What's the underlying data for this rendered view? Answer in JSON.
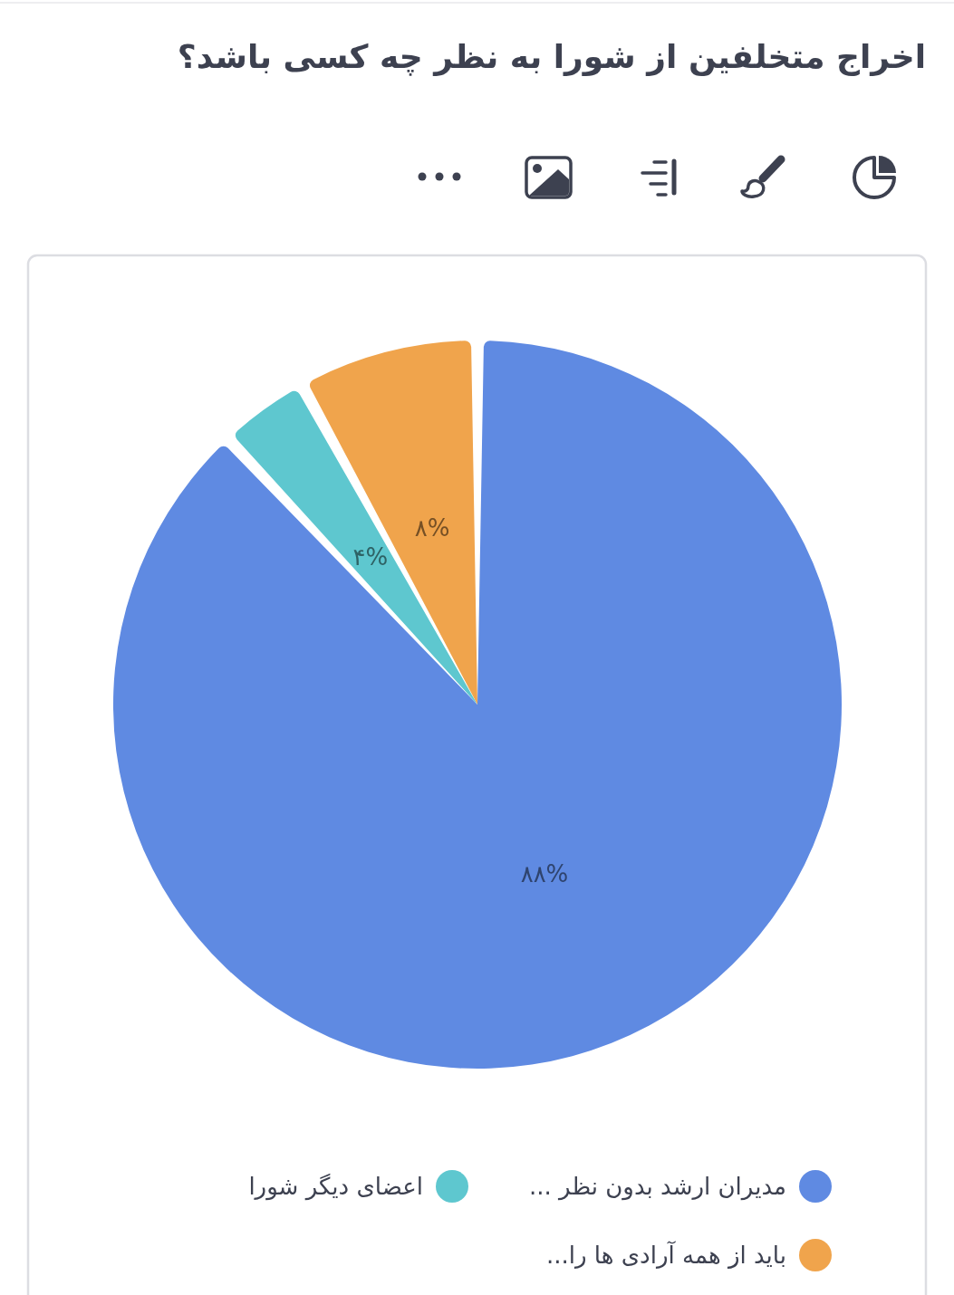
{
  "chart_data": {
    "type": "pie",
    "title": "اخراج متخلفین از شورا به نظر چه کسی باشد؟",
    "categories": [
      "مدیران ارشد بدون نظر ...",
      "اعضای دیگر شورا",
      "باید از همه آرادی ها را..."
    ],
    "values": [
      88,
      4,
      8
    ],
    "colors": [
      "#5f8ae2",
      "#5ec7cf",
      "#f0a44c"
    ],
    "value_labels": [
      "۸۸%",
      "۴%",
      "۸%"
    ],
    "legend": "bottom"
  }
}
